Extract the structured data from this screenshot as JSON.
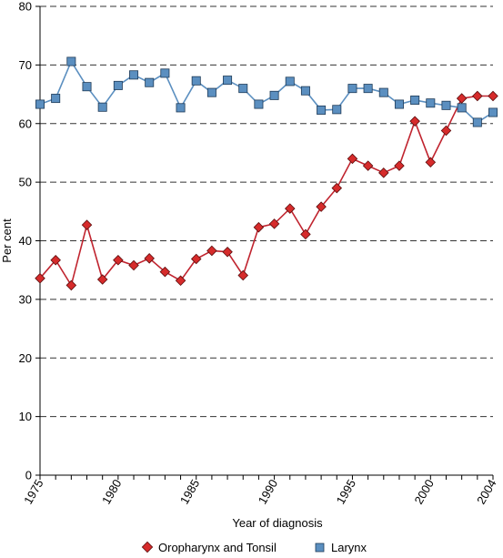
{
  "chart_data": {
    "type": "line",
    "xlabel": "Year of diagnosis",
    "ylabel": "Per cent",
    "xlim": [
      1975,
      2004
    ],
    "ylim": [
      0,
      80
    ],
    "x_ticks": [
      "1975",
      "1980",
      "1985",
      "1990",
      "1995",
      "2000",
      "2004"
    ],
    "x_tick_values": [
      1975,
      1980,
      1985,
      1990,
      1995,
      2000,
      2004
    ],
    "y_ticks": [
      "0",
      "10",
      "20",
      "30",
      "40",
      "50",
      "60",
      "70",
      "80"
    ],
    "y_tick_values": [
      0,
      10,
      20,
      30,
      40,
      50,
      60,
      70,
      80
    ],
    "grid": "horizontal-dashed",
    "legend_position": "bottom",
    "x": [
      1975,
      1976,
      1977,
      1978,
      1979,
      1980,
      1981,
      1982,
      1983,
      1984,
      1985,
      1986,
      1987,
      1988,
      1989,
      1990,
      1991,
      1992,
      1993,
      1994,
      1995,
      1996,
      1997,
      1998,
      1999,
      2000,
      2001,
      2002,
      2003,
      2004
    ],
    "series": [
      {
        "name": "Oropharynx and Tonsil",
        "marker": "diamond",
        "color": "#d62b2b",
        "line_color": "#c0242f",
        "values": [
          33.6,
          36.7,
          32.4,
          42.7,
          33.4,
          36.7,
          35.8,
          37.0,
          34.7,
          33.2,
          36.9,
          38.3,
          38.1,
          34.1,
          42.3,
          42.9,
          45.5,
          41.1,
          45.8,
          49.0,
          54.0,
          52.8,
          51.6,
          52.8,
          60.4,
          53.4,
          58.8,
          64.3,
          64.7,
          64.7
        ]
      },
      {
        "name": "Larynx",
        "marker": "square",
        "color": "#5b8fc0",
        "line_color": "#5b8fc0",
        "values": [
          63.3,
          64.3,
          70.6,
          66.3,
          62.8,
          66.5,
          68.3,
          67.0,
          68.6,
          62.7,
          67.3,
          65.3,
          67.4,
          66.0,
          63.3,
          64.8,
          67.2,
          65.6,
          62.3,
          62.4,
          66.0,
          66.0,
          65.3,
          63.3,
          64.0,
          63.5,
          63.1,
          62.7,
          60.2,
          61.9
        ]
      }
    ]
  }
}
